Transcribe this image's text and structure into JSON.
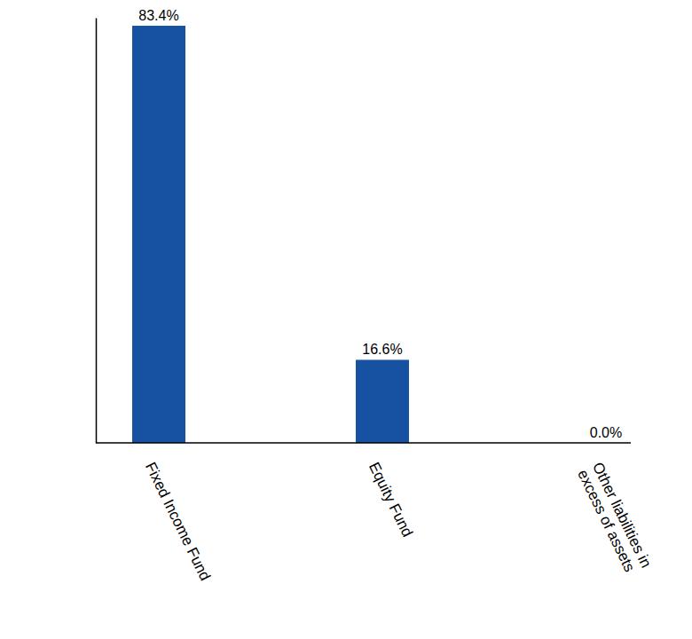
{
  "chart_data": {
    "type": "bar",
    "categories": [
      "Fixed Income Fund",
      "Equity Fund",
      "Other liabilities in excess of assets"
    ],
    "values": [
      83.4,
      16.6,
      0.0
    ],
    "value_labels": [
      "83.4%",
      "16.6%",
      "0.0%"
    ],
    "color": "#1652a1",
    "ylim": [
      0,
      85
    ],
    "yticks": [],
    "grid": false,
    "data_labels": true,
    "tick_labels": "x"
  }
}
